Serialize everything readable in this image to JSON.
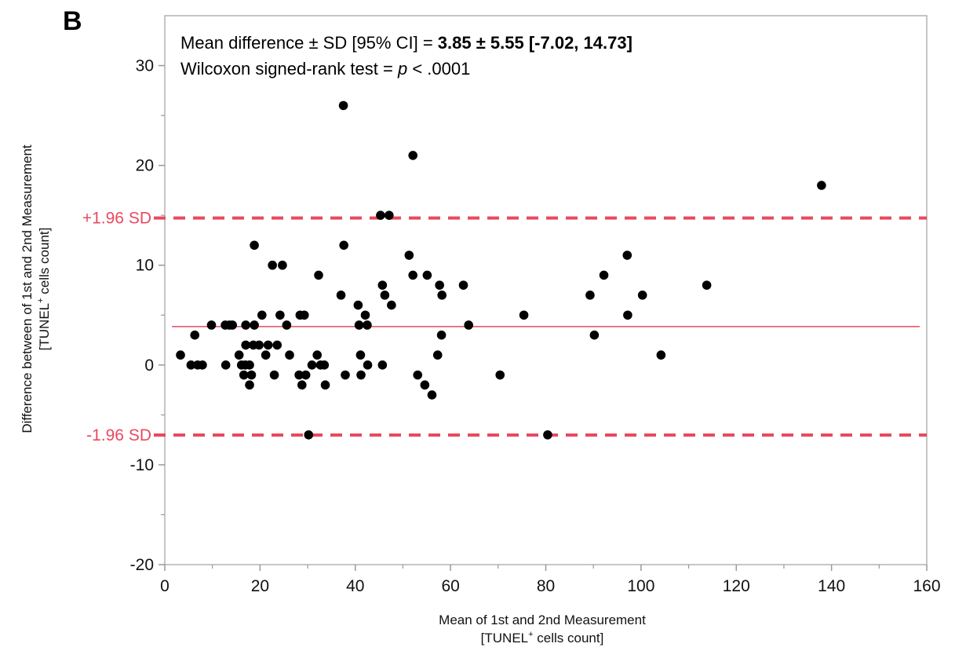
{
  "panel_label": "B",
  "colors": {
    "limits": "#e8495f",
    "mean_line": "#e8495f",
    "points": "#000000",
    "frame": "#b3b3b3"
  },
  "chart_data": {
    "type": "scatter",
    "xlabel_line1": "Mean of 1st and 2nd Measurement",
    "xlabel_line2_pre": "[TUNEL",
    "xlabel_line2_sup": "+",
    "xlabel_line2_post": " cells count]",
    "ylabel_line1": "Difference between of 1st and 2nd Measurement",
    "ylabel_line2_pre": "[TUNEL",
    "ylabel_line2_sup": "+",
    "ylabel_line2_post": " cells count]",
    "xlim": [
      0,
      160
    ],
    "ylim": [
      -20,
      35
    ],
    "xticks": [
      0,
      20,
      40,
      60,
      80,
      100,
      120,
      140,
      160
    ],
    "xtick_labels": [
      "0",
      "20",
      "40",
      "60",
      "80",
      "100",
      "120",
      "140",
      "160"
    ],
    "yticks": [
      -20,
      -10,
      0,
      10,
      20,
      30
    ],
    "ytick_labels": [
      "-20",
      "-10",
      "0",
      "10",
      "20",
      "30"
    ],
    "y_minor_ticks": [
      -15,
      -5,
      5,
      15,
      25
    ],
    "grid": false,
    "mean_difference": 3.85,
    "upper_limit": 14.73,
    "lower_limit": -7.02,
    "upper_label": "+1.96 SD",
    "lower_label": "-1.96 SD",
    "annotation": {
      "line1_normal": "Mean difference ± SD [95% CI] = ",
      "line1_bold": "3.85 ± 5.55 [-7.02, 14.73]",
      "line2_pre": "Wilcoxon signed-rank test = ",
      "line2_italic": "p",
      "line2_post": " < .0001"
    },
    "points": [
      {
        "x": 3.3,
        "y": 1
      },
      {
        "x": 5.5,
        "y": 0
      },
      {
        "x": 6.3,
        "y": 3
      },
      {
        "x": 6.9,
        "y": 0
      },
      {
        "x": 7.9,
        "y": 0
      },
      {
        "x": 9.8,
        "y": 4
      },
      {
        "x": 12.7,
        "y": 4
      },
      {
        "x": 12.8,
        "y": 0
      },
      {
        "x": 13.6,
        "y": 4
      },
      {
        "x": 14.2,
        "y": 4
      },
      {
        "x": 15.6,
        "y": 1
      },
      {
        "x": 16.1,
        "y": 0
      },
      {
        "x": 16.6,
        "y": -1
      },
      {
        "x": 16.9,
        "y": 0
      },
      {
        "x": 17.0,
        "y": 2
      },
      {
        "x": 17.0,
        "y": 4
      },
      {
        "x": 17.8,
        "y": 0
      },
      {
        "x": 17.8,
        "y": -2
      },
      {
        "x": 18.2,
        "y": -1
      },
      {
        "x": 18.6,
        "y": 2
      },
      {
        "x": 18.8,
        "y": 4
      },
      {
        "x": 18.8,
        "y": 12
      },
      {
        "x": 19.8,
        "y": 2
      },
      {
        "x": 20.4,
        "y": 5
      },
      {
        "x": 21.2,
        "y": 1
      },
      {
        "x": 21.7,
        "y": 2
      },
      {
        "x": 22.6,
        "y": 10
      },
      {
        "x": 23.0,
        "y": -1
      },
      {
        "x": 23.6,
        "y": 2
      },
      {
        "x": 24.2,
        "y": 5
      },
      {
        "x": 24.7,
        "y": 10
      },
      {
        "x": 25.6,
        "y": 4
      },
      {
        "x": 26.2,
        "y": 1
      },
      {
        "x": 28.2,
        "y": -1
      },
      {
        "x": 28.4,
        "y": 5
      },
      {
        "x": 28.8,
        "y": -2
      },
      {
        "x": 29.3,
        "y": 5
      },
      {
        "x": 29.6,
        "y": -1
      },
      {
        "x": 30.2,
        "y": -7
      },
      {
        "x": 30.9,
        "y": 0
      },
      {
        "x": 32.0,
        "y": 1
      },
      {
        "x": 32.3,
        "y": 9
      },
      {
        "x": 32.7,
        "y": 0
      },
      {
        "x": 33.5,
        "y": 0
      },
      {
        "x": 33.7,
        "y": -2
      },
      {
        "x": 37.0,
        "y": 7
      },
      {
        "x": 37.5,
        "y": 26
      },
      {
        "x": 37.6,
        "y": 12
      },
      {
        "x": 37.9,
        "y": -1
      },
      {
        "x": 40.6,
        "y": 6
      },
      {
        "x": 40.8,
        "y": 4
      },
      {
        "x": 41.1,
        "y": 1
      },
      {
        "x": 41.2,
        "y": -1
      },
      {
        "x": 42.1,
        "y": 5
      },
      {
        "x": 42.5,
        "y": 4
      },
      {
        "x": 42.6,
        "y": 0
      },
      {
        "x": 45.3,
        "y": 15
      },
      {
        "x": 45.7,
        "y": 8
      },
      {
        "x": 45.7,
        "y": 0
      },
      {
        "x": 46.2,
        "y": 7
      },
      {
        "x": 47.1,
        "y": 15
      },
      {
        "x": 47.6,
        "y": 6
      },
      {
        "x": 51.3,
        "y": 11
      },
      {
        "x": 52.1,
        "y": 21
      },
      {
        "x": 52.1,
        "y": 9
      },
      {
        "x": 53.1,
        "y": -1
      },
      {
        "x": 54.6,
        "y": -2
      },
      {
        "x": 55.1,
        "y": 9
      },
      {
        "x": 56.1,
        "y": -3
      },
      {
        "x": 57.3,
        "y": 1
      },
      {
        "x": 57.7,
        "y": 8
      },
      {
        "x": 58.1,
        "y": 3
      },
      {
        "x": 58.2,
        "y": 7
      },
      {
        "x": 62.7,
        "y": 8
      },
      {
        "x": 63.8,
        "y": 4
      },
      {
        "x": 70.4,
        "y": -1
      },
      {
        "x": 75.4,
        "y": 5
      },
      {
        "x": 80.4,
        "y": -7
      },
      {
        "x": 89.3,
        "y": 7
      },
      {
        "x": 90.2,
        "y": 3
      },
      {
        "x": 92.2,
        "y": 9
      },
      {
        "x": 97.1,
        "y": 11
      },
      {
        "x": 97.2,
        "y": 5
      },
      {
        "x": 100.3,
        "y": 7
      },
      {
        "x": 104.2,
        "y": 1
      },
      {
        "x": 113.8,
        "y": 8
      },
      {
        "x": 137.9,
        "y": 18
      }
    ]
  }
}
